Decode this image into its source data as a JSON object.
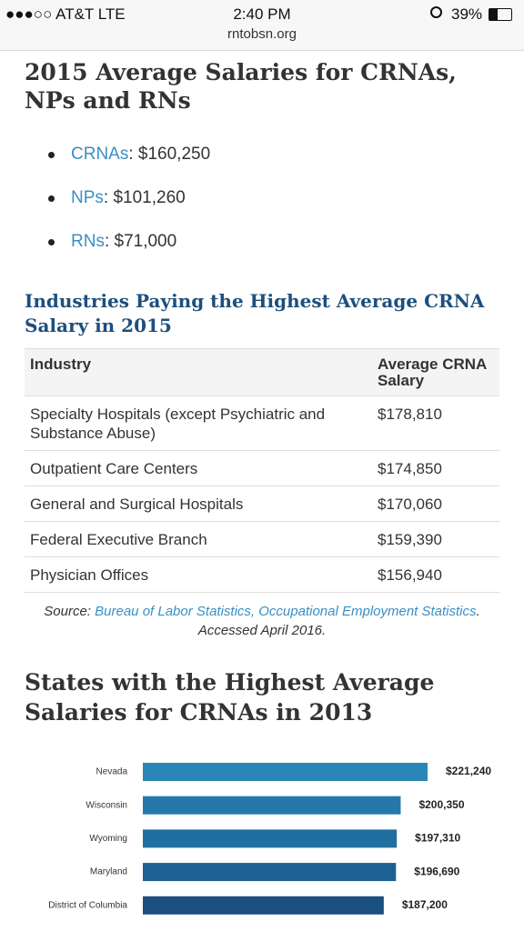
{
  "status_bar": {
    "carrier": "●●●○○ AT&T  LTE",
    "time": "2:40 PM",
    "battery": "39%",
    "url": "rntobsn.org"
  },
  "heading_1": "2015 Average Salaries for CRNAs, NPs and RNs",
  "salary_list": [
    {
      "label": "CRNAs",
      "text": ": $160,250"
    },
    {
      "label": "NPs",
      "text": ": $101,260"
    },
    {
      "label": "RNs",
      "text": ": $71,000"
    }
  ],
  "heading_2": "Industries Paying the Highest Average CRNA Salary in 2015",
  "table": {
    "columns": [
      "Industry",
      "Average CRNA Salary"
    ],
    "rows": [
      [
        "Specialty Hospitals (except Psychiatric and Substance Abuse)",
        "$178,810"
      ],
      [
        "Outpatient Care Centers",
        "$174,850"
      ],
      [
        "General and Surgical Hospitals",
        "$170,060"
      ],
      [
        "Federal Executive Branch",
        "$159,390"
      ],
      [
        "Physician Offices",
        "$156,940"
      ]
    ]
  },
  "source": {
    "prefix": "Source: ",
    "link": "Bureau of Labor Statistics, Occupational Employment Statistics",
    "suffix": ". Accessed April 2016."
  },
  "heading_3": "States with the Highest Average Salaries for CRNAs in 2013",
  "chart": {
    "type": "bar",
    "orientation": "horizontal",
    "categories": [
      "Nevada",
      "Wisconsin",
      "Wyoming",
      "Maryland",
      "District of Columbia"
    ],
    "values": [
      221240,
      200350,
      197310,
      196690,
      187200
    ],
    "value_labels": [
      "$221,240",
      "$200,350",
      "$197,310",
      "$196,690",
      "$187,200"
    ],
    "colors": [
      "#2a86b6",
      "#2579aa",
      "#216ea0",
      "#1d6093",
      "#1a4f80"
    ]
  }
}
